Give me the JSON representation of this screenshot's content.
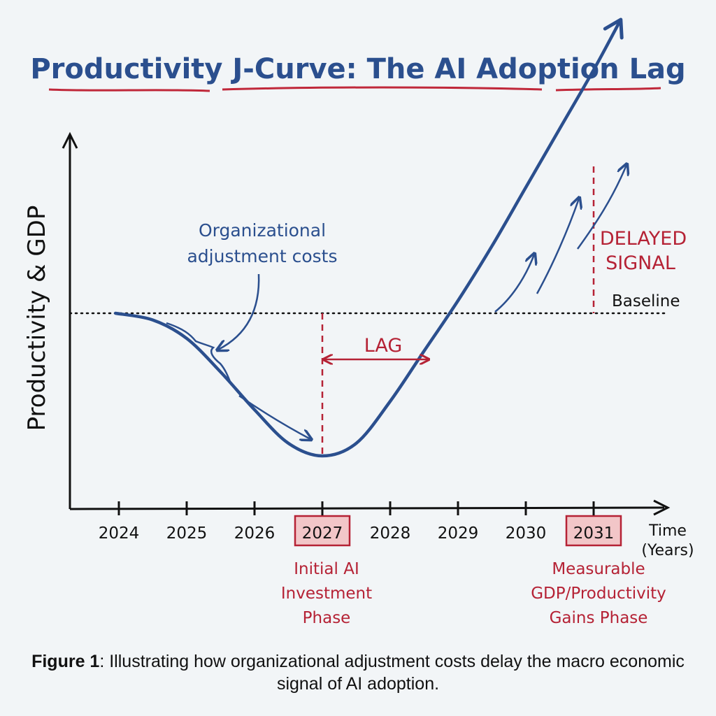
{
  "chart_data": {
    "type": "line",
    "title": "Productivity J-Curve: The AI Adoption Lag",
    "ylabel": "Productivity & GDP",
    "xlabel": "Time (Years)",
    "categories": [
      "2024",
      "2025",
      "2026",
      "2027",
      "2028",
      "2029",
      "2030",
      "2031"
    ],
    "highlighted_ticks": [
      "2027",
      "2031"
    ],
    "series": [
      {
        "x": [
          2023.95,
          2024.5,
          2025.0,
          2025.5,
          2026.0,
          2026.5,
          2027.0,
          2027.5,
          2028.0,
          2028.5,
          2029.0,
          2029.5,
          2030.0,
          2030.5,
          2031.0,
          2031.4
        ],
        "y": [
          0,
          -0.08,
          -0.3,
          -0.7,
          -1.15,
          -1.55,
          -1.7,
          -1.55,
          -1.05,
          -0.45,
          0.15,
          0.8,
          1.5,
          2.2,
          2.9,
          3.5
        ]
      }
    ],
    "baseline": {
      "label": "Baseline",
      "y": 0,
      "style": "dotted"
    },
    "annotations": {
      "adjustment_costs": {
        "line1": "Organizational",
        "line2": "adjustment costs"
      },
      "lag": "LAG",
      "delayed_signal": {
        "line1": "DELAYED",
        "line2": "SIGNAL"
      },
      "phase_2027": {
        "line1": "Initial AI",
        "line2": "Investment",
        "line3": "Phase"
      },
      "phase_2031": {
        "line1": "Measurable",
        "line2": "GDP/Productivity",
        "line3": "Gains Phase"
      }
    },
    "xlabel_lines": [
      "Time",
      "(Years)"
    ],
    "colors": {
      "curve": "#2b4f8e",
      "accent": "#b52235",
      "title_underline": "#c0283a",
      "highlight_fill": "#f2c6c8"
    }
  },
  "caption": {
    "bold": "Figure 1",
    "text": ": Illustrating how organizational adjustment costs delay the macro economic signal of AI adoption."
  }
}
